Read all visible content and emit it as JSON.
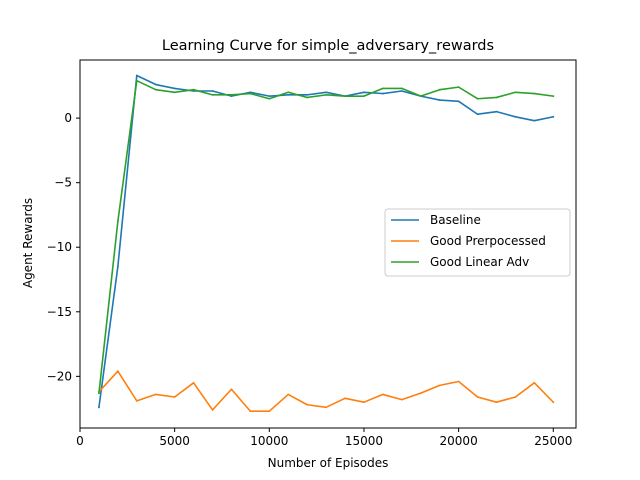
{
  "chart_data": {
    "type": "line",
    "title": "Learning Curve for simple_adversary_rewards",
    "xlabel": "Number of Episodes",
    "ylabel": "Agent Rewards",
    "xlim": [
      0,
      26200
    ],
    "ylim": [
      -24.0,
      4.5
    ],
    "xticks": [
      0,
      5000,
      10000,
      15000,
      20000,
      25000
    ],
    "yticks": [
      -20,
      -15,
      -10,
      -5,
      0
    ],
    "ytick_labels": [
      "−20",
      "−15",
      "−10",
      "−5",
      "0"
    ],
    "grid": false,
    "legend_position": "center-right",
    "x": [
      1000,
      2000,
      3000,
      4000,
      5000,
      6000,
      7000,
      8000,
      9000,
      10000,
      11000,
      12000,
      13000,
      14000,
      15000,
      16000,
      17000,
      18000,
      19000,
      20000,
      21000,
      22000,
      23000,
      24000,
      25000
    ],
    "series": [
      {
        "name": "Baseline",
        "color": "#1f77b4",
        "values": [
          -22.4,
          -11.5,
          3.3,
          2.6,
          2.3,
          2.1,
          2.1,
          1.7,
          2.0,
          1.7,
          1.8,
          1.8,
          2.0,
          1.7,
          2.0,
          1.9,
          2.1,
          1.7,
          1.4,
          1.3,
          0.3,
          0.5,
          0.1,
          -0.2,
          0.1
        ]
      },
      {
        "name": "Good Prerpocessed",
        "color": "#ff7f0e",
        "values": [
          -21.2,
          -19.6,
          -21.9,
          -21.4,
          -21.6,
          -20.5,
          -22.6,
          -21.0,
          -22.7,
          -22.7,
          -21.4,
          -22.2,
          -22.4,
          -21.7,
          -22.0,
          -21.4,
          -21.8,
          -21.3,
          -20.7,
          -20.4,
          -21.6,
          -22.0,
          -21.6,
          -20.5,
          -22.0
        ]
      },
      {
        "name": "Good Linear Adv",
        "color": "#2ca02c",
        "values": [
          -21.3,
          -8.0,
          2.9,
          2.2,
          2.0,
          2.2,
          1.8,
          1.8,
          1.9,
          1.5,
          2.0,
          1.6,
          1.8,
          1.7,
          1.7,
          2.3,
          2.3,
          1.7,
          2.2,
          2.4,
          1.5,
          1.6,
          2.0,
          1.9,
          1.7
        ]
      }
    ]
  }
}
